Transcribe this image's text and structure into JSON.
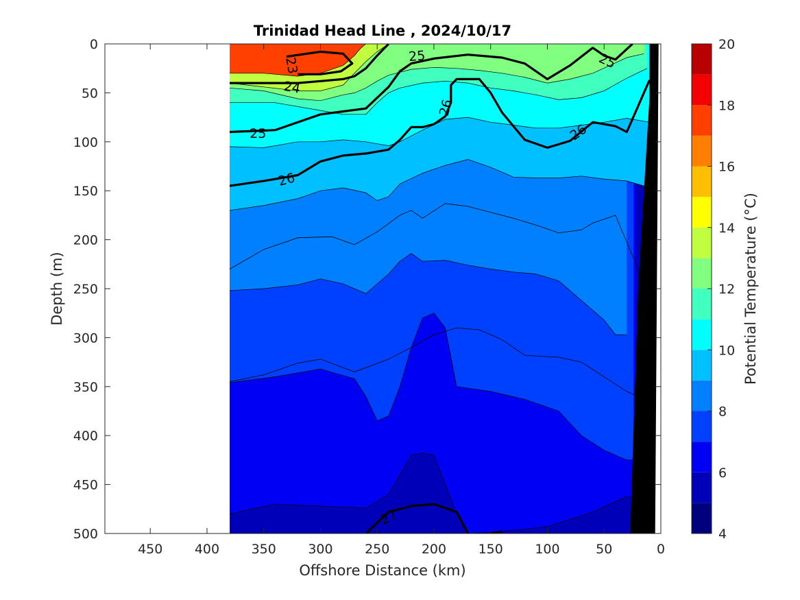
{
  "chart_data": {
    "type": "contour",
    "title": "Trinidad Head Line , 2024/10/17",
    "xlabel": "Offshore Distance (km)",
    "ylabel": "Depth (m)",
    "xlim": [
      490,
      0
    ],
    "ylim": [
      500,
      0
    ],
    "x_ticks": [
      "450",
      "400",
      "350",
      "300",
      "250",
      "200",
      "150",
      "100",
      "50",
      "0"
    ],
    "x_tick_values": [
      450,
      400,
      350,
      300,
      250,
      200,
      150,
      100,
      50,
      0
    ],
    "y_ticks": [
      "0",
      "50",
      "100",
      "150",
      "200",
      "250",
      "300",
      "350",
      "400",
      "450",
      "500"
    ],
    "y_tick_values": [
      0,
      50,
      100,
      150,
      200,
      250,
      300,
      350,
      400,
      450,
      500
    ],
    "data_extent_x": [
      380,
      10
    ],
    "colorbar": {
      "label": "Potential Temperature (°C)",
      "range": [
        4,
        20
      ],
      "ticks": [
        "4",
        "6",
        "8",
        "10",
        "12",
        "14",
        "16",
        "18",
        "20"
      ],
      "tick_values": [
        4,
        6,
        8,
        10,
        12,
        14,
        16,
        18,
        20
      ],
      "colors": [
        "#00007f",
        "#0000b9",
        "#0000f3",
        "#0040ff",
        "#0080ff",
        "#00c0ff",
        "#00ffff",
        "#40ffbf",
        "#80ff80",
        "#bfff40",
        "#ffff00",
        "#ffbf00",
        "#ff8000",
        "#ff4000",
        "#f30000",
        "#b90000"
      ]
    },
    "temperature_boundaries": [
      {
        "value": 6,
        "points": [
          [
            380,
            480
          ],
          [
            340,
            470
          ],
          [
            300,
            472
          ],
          [
            260,
            474
          ],
          [
            240,
            460
          ],
          [
            230,
            440
          ],
          [
            220,
            420
          ],
          [
            210,
            418
          ],
          [
            200,
            420
          ],
          [
            190,
            450
          ],
          [
            180,
            480
          ],
          [
            170,
            500
          ],
          [
            140,
            498
          ],
          [
            100,
            493
          ],
          [
            60,
            478
          ],
          [
            30,
            462
          ],
          [
            22,
            462
          ]
        ]
      },
      {
        "value": 7,
        "points": [
          [
            380,
            346
          ],
          [
            340,
            340
          ],
          [
            300,
            332
          ],
          [
            270,
            342
          ],
          [
            260,
            360
          ],
          [
            250,
            385
          ],
          [
            240,
            380
          ],
          [
            230,
            350
          ],
          [
            220,
            310
          ],
          [
            210,
            280
          ],
          [
            200,
            275
          ],
          [
            190,
            290
          ],
          [
            180,
            350
          ],
          [
            150,
            355
          ],
          [
            120,
            363
          ],
          [
            90,
            375
          ],
          [
            70,
            400
          ],
          [
            50,
            415
          ],
          [
            30,
            425
          ],
          [
            24,
            425
          ]
        ]
      },
      {
        "value": 8,
        "points": [
          [
            380,
            252
          ],
          [
            350,
            250
          ],
          [
            320,
            246
          ],
          [
            300,
            240
          ],
          [
            280,
            245
          ],
          [
            260,
            255
          ],
          [
            240,
            235
          ],
          [
            230,
            222
          ],
          [
            220,
            214
          ],
          [
            210,
            222
          ],
          [
            190,
            221
          ],
          [
            170,
            226
          ],
          [
            150,
            230
          ],
          [
            130,
            233
          ],
          [
            110,
            235
          ],
          [
            90,
            242
          ],
          [
            70,
            262
          ],
          [
            50,
            282
          ],
          [
            40,
            297
          ],
          [
            30,
            297
          ]
        ]
      },
      {
        "value": 9,
        "points": [
          [
            380,
            170
          ],
          [
            350,
            165
          ],
          [
            320,
            158
          ],
          [
            300,
            150
          ],
          [
            280,
            147
          ],
          [
            260,
            152
          ],
          [
            250,
            160
          ],
          [
            240,
            156
          ],
          [
            230,
            143
          ],
          [
            210,
            132
          ],
          [
            190,
            124
          ],
          [
            170,
            118
          ],
          [
            150,
            126
          ],
          [
            130,
            136
          ],
          [
            110,
            137
          ],
          [
            90,
            137
          ],
          [
            70,
            135
          ],
          [
            50,
            138
          ],
          [
            30,
            140
          ],
          [
            15,
            145
          ],
          [
            10,
            145
          ]
        ]
      },
      {
        "value": 10,
        "points": [
          [
            380,
            105
          ],
          [
            350,
            106
          ],
          [
            320,
            100
          ],
          [
            300,
            100
          ],
          [
            280,
            98
          ],
          [
            260,
            100
          ],
          [
            250,
            102
          ],
          [
            240,
            104
          ],
          [
            230,
            100
          ],
          [
            210,
            88
          ],
          [
            190,
            77
          ],
          [
            170,
            75
          ],
          [
            150,
            80
          ],
          [
            130,
            83
          ],
          [
            110,
            86
          ],
          [
            90,
            86
          ],
          [
            70,
            83
          ],
          [
            50,
            80
          ],
          [
            30,
            76
          ],
          [
            10,
            80
          ]
        ]
      },
      {
        "value": 11,
        "points": [
          [
            380,
            60
          ],
          [
            340,
            60
          ],
          [
            300,
            68
          ],
          [
            280,
            72
          ],
          [
            260,
            72
          ],
          [
            250,
            60
          ],
          [
            240,
            50
          ],
          [
            230,
            45
          ],
          [
            210,
            40
          ],
          [
            190,
            38
          ],
          [
            170,
            40
          ],
          [
            150,
            45
          ],
          [
            130,
            48
          ],
          [
            110,
            52
          ],
          [
            90,
            57
          ],
          [
            70,
            55
          ],
          [
            50,
            48
          ],
          [
            30,
            35
          ],
          [
            12,
            25
          ]
        ]
      },
      {
        "value": 12,
        "points": [
          [
            380,
            45
          ],
          [
            350,
            48
          ],
          [
            320,
            56
          ],
          [
            300,
            58
          ],
          [
            280,
            52
          ],
          [
            270,
            50
          ],
          [
            260,
            45
          ],
          [
            250,
            38
          ],
          [
            240,
            32
          ],
          [
            220,
            26
          ],
          [
            200,
            24
          ],
          [
            180,
            25
          ],
          [
            160,
            27
          ],
          [
            140,
            30
          ],
          [
            120,
            34
          ],
          [
            100,
            40
          ],
          [
            80,
            36
          ],
          [
            60,
            30
          ],
          [
            45,
            22
          ],
          [
            30,
            14
          ],
          [
            15,
            10
          ]
        ]
      },
      {
        "value": 13,
        "points": [
          [
            380,
            40
          ],
          [
            350,
            44
          ],
          [
            320,
            48
          ],
          [
            300,
            48
          ],
          [
            280,
            42
          ],
          [
            270,
            30
          ],
          [
            260,
            18
          ],
          [
            250,
            8
          ],
          [
            240,
            0
          ]
        ]
      },
      {
        "value": 17,
        "points": [
          [
            380,
            30
          ],
          [
            350,
            30
          ],
          [
            320,
            33
          ],
          [
            300,
            30
          ],
          [
            280,
            22
          ],
          [
            270,
            12
          ],
          [
            265,
            5
          ],
          [
            260,
            0
          ]
        ]
      }
    ],
    "sigma_theta_contours": [
      {
        "label": "23",
        "points": [
          [
            330,
            13
          ],
          [
            300,
            8
          ],
          [
            280,
            10
          ],
          [
            272,
            20
          ],
          [
            282,
            28
          ],
          [
            300,
            31
          ],
          [
            320,
            31
          ]
        ]
      },
      {
        "label": "24",
        "points": [
          [
            380,
            40
          ],
          [
            350,
            40
          ],
          [
            320,
            40
          ],
          [
            300,
            38
          ],
          [
            280,
            36
          ],
          [
            270,
            33
          ],
          [
            260,
            25
          ],
          [
            250,
            12
          ],
          [
            240,
            0
          ]
        ]
      },
      {
        "label": "25",
        "points": [
          [
            380,
            90
          ],
          [
            340,
            88
          ],
          [
            320,
            80
          ],
          [
            300,
            72
          ],
          [
            280,
            69
          ],
          [
            260,
            66
          ],
          [
            250,
            55
          ],
          [
            240,
            44
          ],
          [
            230,
            28
          ],
          [
            220,
            20
          ],
          [
            200,
            15
          ],
          [
            170,
            11
          ],
          [
            140,
            14
          ],
          [
            120,
            20
          ],
          [
            100,
            36
          ],
          [
            80,
            22
          ],
          [
            60,
            4
          ],
          [
            50,
            12
          ],
          [
            40,
            16
          ],
          [
            25,
            0
          ]
        ]
      },
      {
        "label": "26",
        "points": [
          [
            380,
            145
          ],
          [
            350,
            140
          ],
          [
            320,
            134
          ],
          [
            300,
            120
          ],
          [
            280,
            114
          ],
          [
            260,
            112
          ],
          [
            240,
            108
          ],
          [
            230,
            98
          ],
          [
            220,
            85
          ],
          [
            210,
            85
          ],
          [
            200,
            82
          ],
          [
            190,
            74
          ],
          [
            185,
            60
          ],
          [
            185,
            42
          ],
          [
            180,
            36
          ],
          [
            160,
            36
          ],
          [
            150,
            50
          ],
          [
            140,
            70
          ],
          [
            120,
            98
          ],
          [
            100,
            106
          ],
          [
            80,
            99
          ],
          [
            60,
            80
          ],
          [
            40,
            84
          ],
          [
            30,
            90
          ],
          [
            10,
            37
          ]
        ]
      },
      {
        "label": "27",
        "points": [
          [
            260,
            500
          ],
          [
            240,
            478
          ],
          [
            220,
            472
          ],
          [
            200,
            470
          ],
          [
            180,
            478
          ],
          [
            170,
            500
          ]
        ]
      },
      {
        "label": "",
        "points": [
          [
            150,
            500
          ],
          [
            140,
            498
          ]
        ]
      }
    ],
    "sigma_theta_labels": [
      {
        "text": "23",
        "x": 325,
        "y": 22,
        "angle": 80
      },
      {
        "text": "24",
        "x": 325,
        "y": 44,
        "angle": 10
      },
      {
        "text": "25",
        "x": 215,
        "y": 12,
        "angle": -5
      },
      {
        "text": "25",
        "x": 47,
        "y": 17,
        "angle": 25
      },
      {
        "text": "25",
        "x": 355,
        "y": 91,
        "angle": 0
      },
      {
        "text": "26",
        "x": 190,
        "y": 65,
        "angle": -75
      },
      {
        "text": "26",
        "x": 73,
        "y": 90,
        "angle": -35
      },
      {
        "text": "26",
        "x": 330,
        "y": 138,
        "angle": -15
      },
      {
        "text": "27",
        "x": 240,
        "y": 483,
        "angle": -28
      }
    ],
    "isopycnal_thin_lines": [
      {
        "points": [
          [
            380,
            230
          ],
          [
            350,
            210
          ],
          [
            320,
            198
          ],
          [
            290,
            197
          ],
          [
            270,
            205
          ],
          [
            250,
            192
          ],
          [
            230,
            175
          ],
          [
            220,
            170
          ],
          [
            210,
            178
          ],
          [
            190,
            163
          ],
          [
            170,
            166
          ],
          [
            150,
            172
          ],
          [
            130,
            178
          ],
          [
            110,
            185
          ],
          [
            90,
            193
          ],
          [
            70,
            190
          ],
          [
            60,
            183
          ],
          [
            40,
            175
          ],
          [
            20,
            230
          ],
          [
            10,
            250
          ]
        ]
      },
      {
        "points": [
          [
            380,
            345
          ],
          [
            350,
            338
          ],
          [
            320,
            326
          ],
          [
            300,
            322
          ],
          [
            270,
            335
          ],
          [
            240,
            322
          ],
          [
            220,
            310
          ],
          [
            200,
            297
          ],
          [
            180,
            290
          ],
          [
            160,
            292
          ],
          [
            140,
            302
          ],
          [
            120,
            318
          ],
          [
            90,
            320
          ],
          [
            70,
            325
          ],
          [
            50,
            340
          ],
          [
            30,
            355
          ],
          [
            20,
            360
          ]
        ]
      }
    ],
    "ocean_bottom_polygon": [
      [
        27,
        500
      ],
      [
        5,
        500
      ],
      [
        2,
        0
      ],
      [
        10,
        0
      ],
      [
        10,
        55
      ],
      [
        20,
        250
      ],
      [
        27,
        500
      ]
    ]
  }
}
